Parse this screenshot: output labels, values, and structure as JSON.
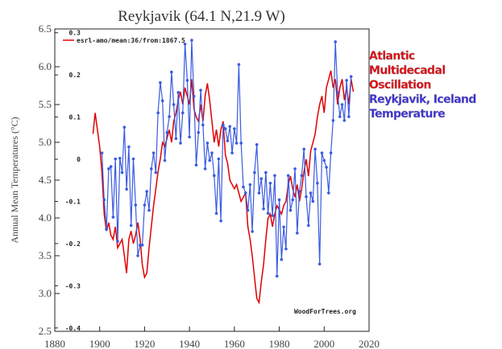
{
  "chart_data": {
    "type": "line",
    "title": "Reykjavik (64.1 N,21.9 W)",
    "y_label": "Annual Mean Temperatures (°C)",
    "credit": "WoodForTrees.org",
    "annotations": [
      {
        "lines": [
          "Atlantic",
          "Multidecadal",
          "Oscillation"
        ],
        "color": "#e8000b"
      },
      {
        "lines": [
          "Reykjavik, Iceland",
          "Temperature"
        ],
        "color": "#3a2ee0"
      }
    ],
    "x": [
      1897,
      1898,
      1899,
      1900,
      1901,
      1902,
      1903,
      1904,
      1905,
      1906,
      1907,
      1908,
      1909,
      1910,
      1911,
      1912,
      1913,
      1914,
      1915,
      1916,
      1917,
      1918,
      1919,
      1920,
      1921,
      1922,
      1923,
      1924,
      1925,
      1926,
      1927,
      1928,
      1929,
      1930,
      1931,
      1932,
      1933,
      1934,
      1935,
      1936,
      1937,
      1938,
      1939,
      1940,
      1941,
      1942,
      1943,
      1944,
      1945,
      1946,
      1947,
      1948,
      1949,
      1950,
      1951,
      1952,
      1953,
      1954,
      1955,
      1956,
      1957,
      1958,
      1959,
      1960,
      1961,
      1962,
      1963,
      1964,
      1965,
      1966,
      1967,
      1968,
      1969,
      1970,
      1971,
      1972,
      1973,
      1974,
      1975,
      1976,
      1977,
      1978,
      1979,
      1980,
      1981,
      1982,
      1983,
      1984,
      1985,
      1986,
      1987,
      1988,
      1989,
      1990,
      1991,
      1992,
      1993,
      1994,
      1995,
      1996,
      1997,
      1998,
      1999,
      2000,
      2001,
      2002,
      2003,
      2004,
      2005,
      2006,
      2007,
      2008,
      2009,
      2010,
      2011,
      2012,
      2013
    ],
    "series": [
      {
        "name": "esrl-amo/mean:36/from:1867.5",
        "color": "#e00000",
        "axis": "y2",
        "markers": false,
        "values": [
          0.06,
          0.11,
          0.07,
          0.03,
          -0.03,
          -0.13,
          -0.17,
          -0.15,
          -0.18,
          -0.19,
          -0.16,
          -0.21,
          -0.2,
          -0.19,
          -0.23,
          -0.27,
          -0.19,
          -0.17,
          -0.2,
          -0.18,
          -0.15,
          -0.19,
          -0.25,
          -0.28,
          -0.27,
          -0.21,
          -0.16,
          -0.11,
          -0.07,
          -0.03,
          0,
          0.04,
          0.03,
          0.05,
          0.07,
          0.04,
          0.09,
          0.11,
          0.14,
          0.16,
          0.13,
          0.17,
          0.15,
          0.13,
          0.19,
          0.12,
          0.1,
          0.09,
          0.13,
          0.09,
          0.15,
          0.18,
          0.14,
          0.09,
          0.04,
          0.07,
          0.03,
          0.07,
          0.09,
          0.01,
          -0.01,
          -0.05,
          -0.06,
          -0.07,
          -0.06,
          -0.08,
          -0.1,
          -0.09,
          -0.08,
          -0.16,
          -0.19,
          -0.23,
          -0.28,
          -0.33,
          -0.34,
          -0.29,
          -0.25,
          -0.19,
          -0.14,
          -0.13,
          -0.16,
          -0.13,
          -0.11,
          -0.12,
          -0.13,
          -0.11,
          -0.1,
          -0.06,
          -0.04,
          -0.07,
          -0.09,
          -0.06,
          -0.1,
          -0.07,
          -0.03,
          0,
          -0.04,
          0.02,
          0.04,
          0.06,
          0.1,
          0.13,
          0.15,
          0.11,
          0.17,
          0.19,
          0.21,
          0.17,
          0.19,
          0.13,
          0.17,
          0.19,
          0.14,
          0.17,
          0.13,
          0.19,
          0.16
        ]
      },
      {
        "color": "#3a5be0",
        "axis": "y",
        "markers": true,
        "values": [
          null,
          null,
          null,
          null,
          4.86,
          4.24,
          3.85,
          4.65,
          4.68,
          4.01,
          4.78,
          3.69,
          4.79,
          4.6,
          5.2,
          4.38,
          4.94,
          3.9,
          4.78,
          4.17,
          3.5,
          3.64,
          3.64,
          4.17,
          4.35,
          4.1,
          4.65,
          4.86,
          4.6,
          5.39,
          5.79,
          5.55,
          4.76,
          5.13,
          5.34,
          5.93,
          5.5,
          5.05,
          5.66,
          4.99,
          5.39,
          6.3,
          5.82,
          5.07,
          6.35,
          5.61,
          4.7,
          5.13,
          5.69,
          5.23,
          4.65,
          4.99,
          4.76,
          4.86,
          4.56,
          4.06,
          4.78,
          3.96,
          5.23,
          5.18,
          5.02,
          5.21,
          4.86,
          5.18,
          4.99,
          6.03,
          4.99,
          4.41,
          4.33,
          4.1,
          4.44,
          3.82,
          4.6,
          4.97,
          4.33,
          4.52,
          4.12,
          4.6,
          4.06,
          4.46,
          4.03,
          4.56,
          3.23,
          4.24,
          3.45,
          3.88,
          3.59,
          4.56,
          4.1,
          4.24,
          4.65,
          3.8,
          4.35,
          4.56,
          4.91,
          4.28,
          3.9,
          4.33,
          4.22,
          4.91,
          4.46,
          3.39,
          4.86,
          4.76,
          4.67,
          4.33,
          4.86,
          5.29,
          6.33,
          5.66,
          5.34,
          5.5,
          5.29,
          5.82,
          5.34,
          5.87,
          null
        ]
      }
    ],
    "xlim": [
      1880,
      2020
    ],
    "xticks": [
      1880,
      1900,
      1920,
      1940,
      1960,
      1980,
      2000,
      2020
    ],
    "ylim": [
      2.5,
      6.5
    ],
    "yticks": [
      2.5,
      {
        "value": 3,
        "label": "3.0"
      },
      3.5,
      {
        "value": 4,
        "label": "4.0"
      },
      4.5,
      {
        "value": 5,
        "label": "5.0"
      },
      5.5,
      {
        "value": 6,
        "label": "6.0"
      },
      6.5
    ],
    "y2lim": [
      -0.408,
      0.309
    ],
    "y2ticks": [
      -0.4,
      -0.3,
      -0.2,
      -0.1,
      0,
      0.1,
      0.2,
      0.3
    ]
  }
}
